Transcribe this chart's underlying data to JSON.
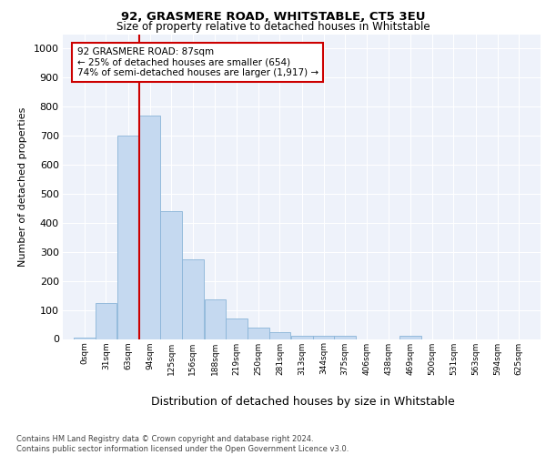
{
  "title1": "92, GRASMERE ROAD, WHITSTABLE, CT5 3EU",
  "title2": "Size of property relative to detached houses in Whitstable",
  "xlabel": "Distribution of detached houses by size in Whitstable",
  "ylabel": "Number of detached properties",
  "bar_labels": [
    "0sqm",
    "31sqm",
    "63sqm",
    "94sqm",
    "125sqm",
    "156sqm",
    "188sqm",
    "219sqm",
    "250sqm",
    "281sqm",
    "313sqm",
    "344sqm",
    "375sqm",
    "406sqm",
    "438sqm",
    "469sqm",
    "500sqm",
    "531sqm",
    "563sqm",
    "594sqm",
    "625sqm"
  ],
  "bar_values": [
    5,
    125,
    700,
    770,
    440,
    275,
    135,
    70,
    38,
    22,
    10,
    10,
    10,
    0,
    0,
    10,
    0,
    0,
    0,
    0,
    0
  ],
  "bar_color": "#c5d9f0",
  "bar_edgecolor": "#8ab4d8",
  "vline_x_index": 3,
  "vline_color": "#cc0000",
  "annotation_text": "92 GRASMERE ROAD: 87sqm\n← 25% of detached houses are smaller (654)\n74% of semi-detached houses are larger (1,917) →",
  "annotation_box_color": "#cc0000",
  "ylim": [
    0,
    1050
  ],
  "yticks": [
    0,
    100,
    200,
    300,
    400,
    500,
    600,
    700,
    800,
    900,
    1000
  ],
  "background_color": "#eef2fa",
  "footer_text": "Contains HM Land Registry data © Crown copyright and database right 2024.\nContains public sector information licensed under the Open Government Licence v3.0.",
  "x_starts": [
    0,
    31,
    63,
    94,
    125,
    156,
    188,
    219,
    250,
    281,
    313,
    344,
    375,
    406,
    438,
    469,
    500,
    531,
    563,
    594,
    625
  ],
  "bin_width": 31
}
